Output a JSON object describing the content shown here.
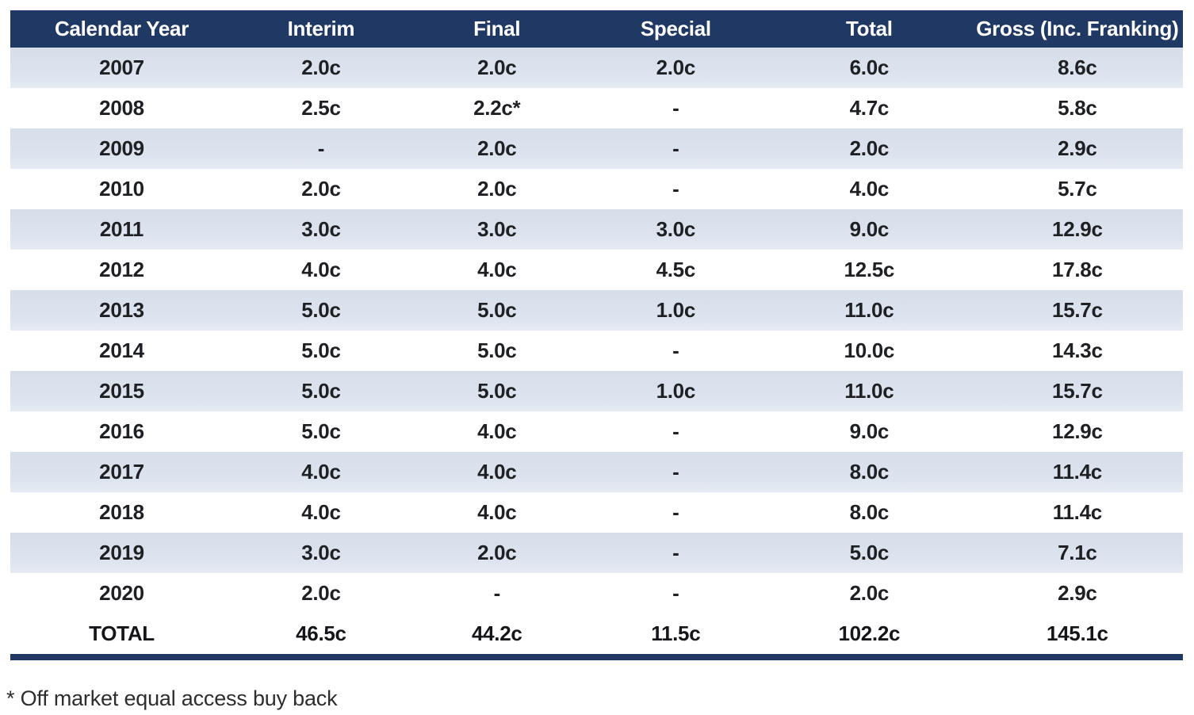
{
  "colors": {
    "header_bg": "#1f3864",
    "header_text": "#ffffff",
    "row_alt_bg": "#dde4ef",
    "row_bg": "#ffffff",
    "bottom_rule": "#1f3864",
    "cell_text": "#1e2024"
  },
  "table": {
    "columns": [
      "Calendar Year",
      "Interim",
      "Final",
      "Special",
      "Total",
      "Gross (Inc. Franking)"
    ],
    "rows": [
      [
        "2007",
        "2.0c",
        "2.0c",
        "2.0c",
        "6.0c",
        "8.6c"
      ],
      [
        "2008",
        "2.5c",
        "2.2c*",
        "-",
        "4.7c",
        "5.8c"
      ],
      [
        "2009",
        "-",
        "2.0c",
        "-",
        "2.0c",
        "2.9c"
      ],
      [
        "2010",
        "2.0c",
        "2.0c",
        "-",
        "4.0c",
        "5.7c"
      ],
      [
        "2011",
        "3.0c",
        "3.0c",
        "3.0c",
        "9.0c",
        "12.9c"
      ],
      [
        "2012",
        "4.0c",
        "4.0c",
        "4.5c",
        "12.5c",
        "17.8c"
      ],
      [
        "2013",
        "5.0c",
        "5.0c",
        "1.0c",
        "11.0c",
        "15.7c"
      ],
      [
        "2014",
        "5.0c",
        "5.0c",
        "-",
        "10.0c",
        "14.3c"
      ],
      [
        "2015",
        "5.0c",
        "5.0c",
        "1.0c",
        "11.0c",
        "15.7c"
      ],
      [
        "2016",
        "5.0c",
        "4.0c",
        "-",
        "9.0c",
        "12.9c"
      ],
      [
        "2017",
        "4.0c",
        "4.0c",
        "-",
        "8.0c",
        "11.4c"
      ],
      [
        "2018",
        "4.0c",
        "4.0c",
        "-",
        "8.0c",
        "11.4c"
      ],
      [
        "2019",
        "3.0c",
        "2.0c",
        "-",
        "5.0c",
        "7.1c"
      ],
      [
        "2020",
        "2.0c",
        "-",
        "-",
        "2.0c",
        "2.9c"
      ],
      [
        "TOTAL",
        "46.5c",
        "44.2c",
        "11.5c",
        "102.2c",
        "145.1c"
      ]
    ]
  },
  "footnote": "* Off market equal access buy back"
}
